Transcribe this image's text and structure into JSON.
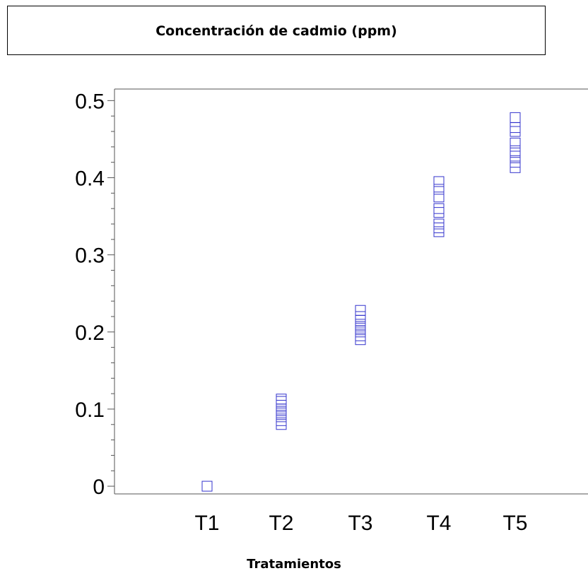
{
  "chart_data": {
    "type": "scatter",
    "title": "Concentración de cadmio (ppm)",
    "xlabel": "Tratamientos",
    "ylabel": "",
    "categories": [
      "T1",
      "T2",
      "T3",
      "T4",
      "T5"
    ],
    "ylim": [
      -0.01,
      0.515
    ],
    "yticks": [
      "0",
      "0.1",
      "0.2",
      "0.3",
      "0.4",
      "0.5"
    ],
    "grid": false,
    "marker_color": "#3333cc",
    "series": [
      {
        "points": [
          {
            "x": "T1",
            "y": 0.0
          },
          {
            "x": "T2",
            "y": 0.08
          },
          {
            "x": "T2",
            "y": 0.085
          },
          {
            "x": "T2",
            "y": 0.09
          },
          {
            "x": "T2",
            "y": 0.095
          },
          {
            "x": "T2",
            "y": 0.1
          },
          {
            "x": "T2",
            "y": 0.105
          },
          {
            "x": "T2",
            "y": 0.11
          },
          {
            "x": "T2",
            "y": 0.113
          },
          {
            "x": "T3",
            "y": 0.19
          },
          {
            "x": "T3",
            "y": 0.195
          },
          {
            "x": "T3",
            "y": 0.2
          },
          {
            "x": "T3",
            "y": 0.205
          },
          {
            "x": "T3",
            "y": 0.21
          },
          {
            "x": "T3",
            "y": 0.215
          },
          {
            "x": "T3",
            "y": 0.22
          },
          {
            "x": "T3",
            "y": 0.228
          },
          {
            "x": "T4",
            "y": 0.33
          },
          {
            "x": "T4",
            "y": 0.335
          },
          {
            "x": "T4",
            "y": 0.34
          },
          {
            "x": "T4",
            "y": 0.355
          },
          {
            "x": "T4",
            "y": 0.36
          },
          {
            "x": "T4",
            "y": 0.375
          },
          {
            "x": "T4",
            "y": 0.385
          },
          {
            "x": "T4",
            "y": 0.395
          },
          {
            "x": "T5",
            "y": 0.413
          },
          {
            "x": "T5",
            "y": 0.42
          },
          {
            "x": "T5",
            "y": 0.428
          },
          {
            "x": "T5",
            "y": 0.435
          },
          {
            "x": "T5",
            "y": 0.445
          },
          {
            "x": "T5",
            "y": 0.46
          },
          {
            "x": "T5",
            "y": 0.465
          },
          {
            "x": "T5",
            "y": 0.478
          }
        ]
      }
    ]
  }
}
